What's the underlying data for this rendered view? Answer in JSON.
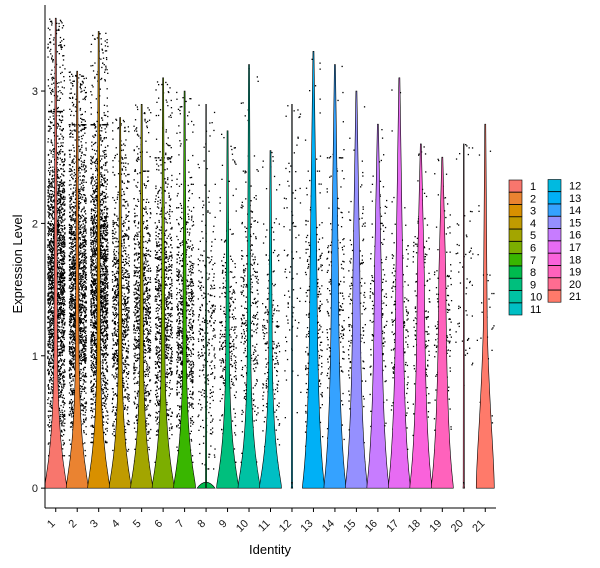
{
  "chart_data": {
    "type": "violin",
    "title": "",
    "xlabel": "Identity",
    "ylabel": "Expression Level",
    "ylim": [
      -0.15,
      3.65
    ],
    "yticks": [
      0,
      1,
      2,
      3
    ],
    "grid": false,
    "legend_position": "right",
    "categories": [
      "1",
      "2",
      "3",
      "4",
      "5",
      "6",
      "7",
      "8",
      "9",
      "10",
      "11",
      "12",
      "13",
      "14",
      "15",
      "16",
      "17",
      "18",
      "19",
      "20",
      "21"
    ],
    "colors": [
      "#F8766D",
      "#EA8331",
      "#D89000",
      "#C09B00",
      "#A3A500",
      "#7CAE00",
      "#39B600",
      "#00BB4E",
      "#00BF7D",
      "#00C1A3",
      "#00BFC4",
      "#00BAE0",
      "#00B0F6",
      "#35A2FF",
      "#9590FF",
      "#C77CFF",
      "#E76BF3",
      "#FA62DB",
      "#FF62BC",
      "#FF6C91",
      "#FF7A6A"
    ],
    "series": [
      {
        "name": "1",
        "max": 3.55,
        "point_count": 2200,
        "point_range": [
          0.35,
          2.75
        ]
      },
      {
        "name": "2",
        "max": 3.15,
        "point_count": 1900,
        "point_range": [
          0.35,
          2.65
        ]
      },
      {
        "name": "3",
        "max": 3.45,
        "point_count": 1900,
        "point_range": [
          0.45,
          2.65
        ]
      },
      {
        "name": "4",
        "max": 2.8,
        "point_count": 900,
        "point_range": [
          0.3,
          2.4
        ]
      },
      {
        "name": "5",
        "max": 2.9,
        "point_count": 850,
        "point_range": [
          0.3,
          2.3
        ]
      },
      {
        "name": "6",
        "max": 3.1,
        "point_count": 900,
        "point_range": [
          0.3,
          2.4
        ]
      },
      {
        "name": "7",
        "max": 3.0,
        "point_count": 800,
        "point_range": [
          0.3,
          2.2
        ]
      },
      {
        "name": "8",
        "max": 2.9,
        "point_count": 300,
        "point_range": [
          0.25,
          2.1
        ]
      },
      {
        "name": "9",
        "max": 2.7,
        "point_count": 300,
        "point_range": [
          0.3,
          2.0
        ]
      },
      {
        "name": "10",
        "max": 3.2,
        "point_count": 340,
        "point_range": [
          0.3,
          2.3
        ]
      },
      {
        "name": "11",
        "max": 2.55,
        "point_count": 220,
        "point_range": [
          0.3,
          1.9
        ]
      },
      {
        "name": "12",
        "max": 2.9,
        "point_count": 90,
        "point_range": [
          0.6,
          2.8
        ]
      },
      {
        "name": "13",
        "max": 3.3,
        "point_count": 300,
        "point_range": [
          0.3,
          2.3
        ]
      },
      {
        "name": "14",
        "max": 3.2,
        "point_count": 260,
        "point_range": [
          0.3,
          2.4
        ]
      },
      {
        "name": "15",
        "max": 3.0,
        "point_count": 200,
        "point_range": [
          0.3,
          2.3
        ]
      },
      {
        "name": "16",
        "max": 2.75,
        "point_count": 200,
        "point_range": [
          0.3,
          2.2
        ]
      },
      {
        "name": "17",
        "max": 3.1,
        "point_count": 210,
        "point_range": [
          0.3,
          2.1
        ]
      },
      {
        "name": "18",
        "max": 2.6,
        "point_count": 200,
        "point_range": [
          0.3,
          2.2
        ]
      },
      {
        "name": "19",
        "max": 2.5,
        "point_count": 180,
        "point_range": [
          0.3,
          2.0
        ]
      },
      {
        "name": "20",
        "max": 2.6,
        "point_count": 60,
        "point_range": [
          0.6,
          2.5
        ]
      },
      {
        "name": "21",
        "max": 2.75,
        "point_count": 35,
        "point_range": [
          0.4,
          2.0
        ]
      }
    ]
  }
}
